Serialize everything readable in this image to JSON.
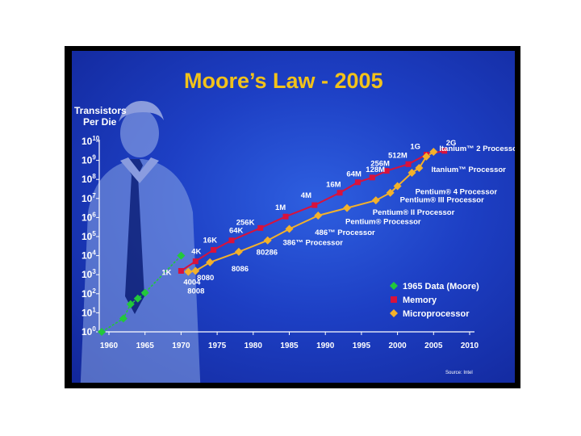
{
  "title": "Moore’s Law - 2005",
  "source": "Source: Intel",
  "chart_data": {
    "type": "line",
    "title": "Moore’s Law - 2005",
    "ylabel_line1": "Transistors",
    "ylabel_line2": "Per Die",
    "y_scale": "log10",
    "ylim_exponent": [
      0,
      10
    ],
    "y_ticks": [
      {
        "base": "10",
        "exp": "10"
      },
      {
        "base": "10",
        "exp": "9"
      },
      {
        "base": "10",
        "exp": "8"
      },
      {
        "base": "10",
        "exp": "7"
      },
      {
        "base": "10",
        "exp": "6"
      },
      {
        "base": "10",
        "exp": "5"
      },
      {
        "base": "10",
        "exp": "4"
      },
      {
        "base": "10",
        "exp": "3"
      },
      {
        "base": "10",
        "exp": "2"
      },
      {
        "base": "10",
        "exp": "1"
      },
      {
        "base": "10",
        "exp": "0"
      }
    ],
    "x_ticks": [
      "1960",
      "1965",
      "1970",
      "1975",
      "1980",
      "1985",
      "1990",
      "1995",
      "2000",
      "2005",
      "2010"
    ],
    "xlim": [
      1958,
      2011
    ],
    "legend_position": "bottom-right",
    "series": [
      {
        "name": "1965 Data (Moore)",
        "color": "#22c83a",
        "marker": "diamond",
        "points": [
          {
            "x": 1959,
            "y": 0
          },
          {
            "x": 1962,
            "y": 0.7
          },
          {
            "x": 1963,
            "y": 1.45
          },
          {
            "x": 1964,
            "y": 1.75
          },
          {
            "x": 1965,
            "y": 2.05
          },
          {
            "x": 1970,
            "y": 4
          }
        ]
      },
      {
        "name": "Memory",
        "color": "#d8123c",
        "marker": "square",
        "points": [
          {
            "x": 1970,
            "y": 3.2,
            "label": "1K"
          },
          {
            "x": 1972,
            "y": 3.7,
            "label": "4K"
          },
          {
            "x": 1974.5,
            "y": 4.3,
            "label": "16K"
          },
          {
            "x": 1977,
            "y": 4.8,
            "label": "64K"
          },
          {
            "x": 1981,
            "y": 5.45,
            "label": "256K"
          },
          {
            "x": 1984.5,
            "y": 6.05,
            "label": "1M"
          },
          {
            "x": 1988.5,
            "y": 6.65,
            "label": "4M"
          },
          {
            "x": 1992,
            "y": 7.3,
            "label": "16M"
          },
          {
            "x": 1994.5,
            "y": 7.85,
            "label": "64M"
          },
          {
            "x": 1996.5,
            "y": 8.1,
            "label": "128M"
          },
          {
            "x": 1998.5,
            "y": 8.45,
            "label": "256M"
          },
          {
            "x": 2001.5,
            "y": 8.8,
            "label": "512M"
          },
          {
            "x": 2004,
            "y": 9.3,
            "label": "1G"
          },
          {
            "x": 2006.5,
            "y": 9.5,
            "label": "2G"
          }
        ]
      },
      {
        "name": "Microprocessor",
        "color": "#f3b12b",
        "marker": "diamond",
        "points": [
          {
            "x": 1971,
            "y": 3.15,
            "label": "4004"
          },
          {
            "x": 1972,
            "y": 3.2,
            "label": "8008"
          },
          {
            "x": 1974,
            "y": 3.65,
            "label": "8080"
          },
          {
            "x": 1978,
            "y": 4.2,
            "label": "8086"
          },
          {
            "x": 1982,
            "y": 4.8,
            "label": "80286"
          },
          {
            "x": 1985,
            "y": 5.4,
            "label": "386™ Processor"
          },
          {
            "x": 1989,
            "y": 6.1,
            "label": "486™ Processor"
          },
          {
            "x": 1993,
            "y": 6.5,
            "label": "Pentium® Processor"
          },
          {
            "x": 1997,
            "y": 6.9,
            "label": "Pentium® II Processor"
          },
          {
            "x": 1999,
            "y": 7.3,
            "label": "Pentium® III Processor"
          },
          {
            "x": 2000,
            "y": 7.65,
            "label": "Pentium® 4 Processor"
          },
          {
            "x": 2002,
            "y": 8.35,
            "label": "Itanium™ Processor"
          },
          {
            "x": 2003,
            "y": 8.6
          },
          {
            "x": 2004,
            "y": 9.2,
            "label": "Itanium™ 2 Processor"
          },
          {
            "x": 2005,
            "y": 9.45
          }
        ]
      }
    ],
    "labels": {
      "memory": [
        "1K",
        "4K",
        "16K",
        "64K",
        "256K",
        "1M",
        "4M",
        "16M",
        "64M",
        "128M",
        "256M",
        "512M",
        "1G",
        "2G"
      ],
      "cpu": [
        "4004",
        "8008",
        "8080",
        "8086",
        "80286",
        "386™ Processor",
        "486™ Processor",
        "Pentium® Processor",
        "Pentium® II Processor",
        "Pentium® III Processor",
        "Pentium® 4 Processor",
        "Itanium™ Processor",
        "Itanium™ 2 Processor"
      ]
    }
  }
}
